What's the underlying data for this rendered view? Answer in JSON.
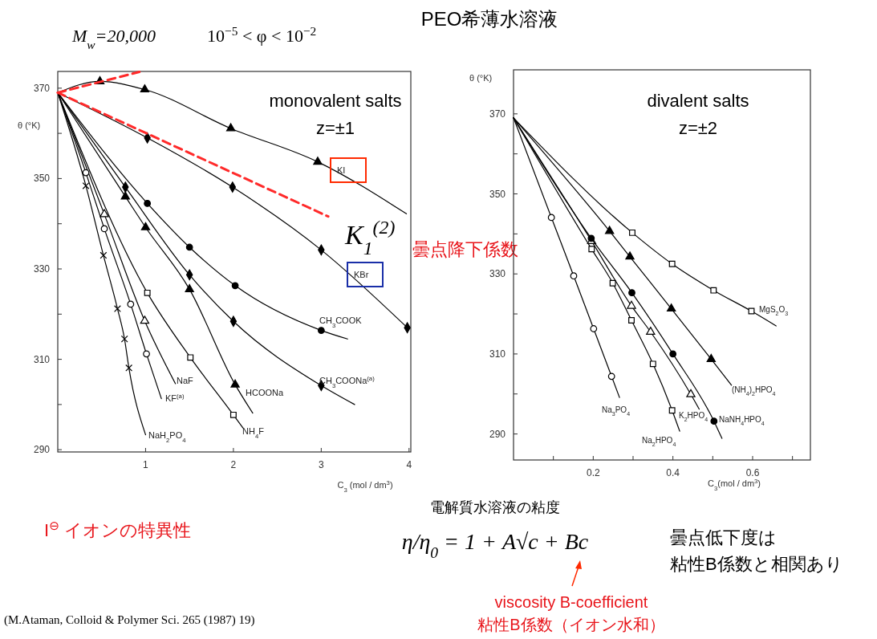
{
  "chart_data": [
    {
      "type": "line",
      "title": "PEO希薄水溶液",
      "xlabel": "C$_{3}$ (mol / dm$^{3}$)",
      "ylabel": "θ (°K)",
      "xlim": [
        0,
        4.02
      ],
      "ylim": [
        289.5,
        373.7
      ],
      "xticks": [
        1,
        2,
        3,
        4
      ],
      "yticks": [
        290,
        {
          "value": 300,
          "label": null
        },
        310,
        {
          "value": 320,
          "label": null
        },
        330,
        {
          "value": 340,
          "label": null
        },
        350,
        {
          "value": 360,
          "label": null
        },
        370
      ],
      "annotations": [
        "M$_{w}$=20,000",
        "10$^{−5}$ < φ < 10$^{−2}$",
        "monovalent salts",
        "z=±1",
        "K$_{1}$$^{(2)}$",
        "曇点降下係数",
        "I$^{⊖}$ イオンの特異性",
        "電解質水溶液の粘度",
        "η/η$_{0}$ = 1 + A√c + Bc",
        "曇点低下度は",
        "粘性B係数と相関あり",
        "viscosity B-coefficient",
        "粘性B係数（イオン水和）",
        "(M.Ataman, Colloid & Polymer Sci. 265 (1987) 19)"
      ],
      "series": [
        {
          "type": "line",
          "name": "KI",
          "color": "#000000",
          "marker": "none",
          "x": [
            0,
            0.48,
            0.99,
            1.97,
            2.96,
            3.97
          ],
          "values": [
            369,
            371.5,
            369.7,
            361.1,
            353.7,
            342.2
          ]
        },
        {
          "type": "scatter",
          "color": "#000000",
          "marker": "triangle",
          "x": [
            0.48,
            0.99,
            1.97,
            2.96
          ],
          "values": [
            371.5,
            369.7,
            361.1,
            353.7
          ]
        },
        {
          "type": "line",
          "name": "KBr",
          "color": "#000000",
          "marker": "none",
          "x": [
            0,
            1.02,
            1.99,
            3.0,
            3.98
          ],
          "values": [
            369,
            359.0,
            348.1,
            334.2,
            317.0
          ]
        },
        {
          "type": "scatter",
          "color": "#000000",
          "marker": "diamond",
          "x": [
            1.02,
            1.99,
            3.0,
            3.98
          ],
          "values": [
            359.0,
            348.1,
            334.2,
            317.0
          ]
        },
        {
          "type": "line",
          "name": "CH$_{3}$COOK",
          "color": "#000000",
          "marker": "none",
          "x": [
            0,
            1.02,
            1.5,
            2.02,
            3.0,
            3.3
          ],
          "values": [
            369,
            344.5,
            334.8,
            326.3,
            316.4,
            314.5
          ]
        },
        {
          "type": "scatter",
          "color": "#000000",
          "marker": "circle",
          "x": [
            1.02,
            1.5,
            2.02,
            3.0
          ],
          "values": [
            344.5,
            334.8,
            326.3,
            316.4
          ]
        },
        {
          "type": "line",
          "name": "CH$_{3}$COONa$^{(a)}$",
          "color": "#000000",
          "marker": "none",
          "x": [
            0,
            0.77,
            1.5,
            2.0,
            3.0,
            3.38
          ],
          "values": [
            369,
            348.1,
            328.7,
            318.4,
            304.2,
            300.0
          ]
        },
        {
          "type": "scatter",
          "color": "#000000",
          "marker": "diamond",
          "x": [
            0.77,
            1.5,
            2.0,
            3.0
          ],
          "values": [
            348.1,
            328.7,
            318.4,
            304.2
          ]
        },
        {
          "type": "line",
          "name": "HCOONa",
          "color": "#000000",
          "marker": "none",
          "x": [
            0,
            0.77,
            1.0,
            1.5,
            2.02,
            2.22
          ],
          "values": [
            369,
            346.0,
            339.2,
            325.5,
            304.4,
            298.1
          ]
        },
        {
          "type": "scatter",
          "color": "#000000",
          "marker": "triangle",
          "x": [
            0.77,
            1.0,
            1.5,
            2.02
          ],
          "values": [
            346.0,
            339.2,
            325.5,
            304.4
          ]
        },
        {
          "type": "line",
          "name": "NH$_{4}$F",
          "color": "#000000",
          "marker": "none",
          "x": [
            0,
            1.02,
            1.51,
            2.0,
            2.11
          ],
          "values": [
            369,
            324.7,
            310.4,
            297.7,
            294.8
          ]
        },
        {
          "type": "scatter",
          "color": "#ffffff",
          "marker": "square",
          "x": [
            1.02,
            1.51,
            2.0
          ],
          "values": [
            324.7,
            310.4,
            297.7
          ]
        },
        {
          "type": "line",
          "name": "NaF",
          "color": "#000000",
          "marker": "none",
          "x": [
            0,
            0.53,
            0.99,
            1.34
          ],
          "values": [
            369,
            342.1,
            318.5,
            304.6
          ]
        },
        {
          "type": "scatter",
          "color": "#ffffff",
          "marker": "triangle",
          "x": [
            0.53,
            0.99
          ],
          "values": [
            342.1,
            318.5
          ]
        },
        {
          "type": "line",
          "name": "KF$^{(a)}$",
          "color": "#000000",
          "marker": "none",
          "x": [
            0,
            0.32,
            0.53,
            0.83,
            1.01,
            1.18
          ],
          "values": [
            369,
            351.3,
            338.9,
            322.2,
            311.2,
            301.3
          ]
        },
        {
          "type": "scatter",
          "color": "#ffffff",
          "marker": "circle",
          "x": [
            0.32,
            0.53,
            0.83,
            1.01
          ],
          "values": [
            351.3,
            338.9,
            322.2,
            311.2
          ]
        },
        {
          "type": "line",
          "name": "NaH$_{2}$PO$_{4}$",
          "color": "#000000",
          "marker": "none",
          "x": [
            0,
            0.32,
            0.52,
            0.68,
            0.76,
            0.81,
            1.0
          ],
          "values": [
            369,
            348.4,
            333.0,
            321.2,
            314.5,
            308.1,
            293.3
          ]
        },
        {
          "type": "scatter",
          "color": "#000000",
          "marker": "cross",
          "x": [
            0.32,
            0.52,
            0.68,
            0.76,
            0.81
          ],
          "values": [
            348.4,
            333.0,
            321.2,
            314.5,
            308.1
          ]
        },
        {
          "type": "line",
          "color": "#ff2a2a",
          "marker": "none",
          "line_style": "dashed",
          "x": [
            0,
            0.93
          ],
          "values": [
            369,
            373.6
          ]
        },
        {
          "type": "line",
          "color": "#ff2a2a",
          "marker": "none",
          "line_style": "dashed",
          "x": [
            0,
            3.08
          ],
          "values": [
            369,
            341.6
          ]
        }
      ]
    },
    {
      "type": "line",
      "xlabel": "C$_{3}$(mol / dm$^{3}$)",
      "ylabel": "θ (°K)",
      "xlim": [
        0,
        0.745
      ],
      "ylim": [
        283.5,
        381
      ],
      "xticks": [
        {
          "value": 0.1,
          "label": null
        },
        0.2,
        {
          "value": 0.3,
          "label": null
        },
        0.4,
        {
          "value": 0.5,
          "label": null
        },
        0.6,
        {
          "value": 0.7,
          "label": null
        }
      ],
      "yticks": [
        290,
        {
          "value": 300,
          "label": null
        },
        310,
        {
          "value": 320,
          "label": null
        },
        330,
        {
          "value": 340,
          "label": null
        },
        350,
        {
          "value": 360,
          "label": null
        },
        370
      ],
      "annotations": [
        "divalent salts",
        "z=±2"
      ],
      "series": [
        {
          "type": "line",
          "name": "Na$_{3}$PO$_{4}$",
          "color": "#000000",
          "marker": "none",
          "x": [
            0,
            0.095,
            0.151,
            0.201,
            0.246,
            0.266
          ],
          "values": [
            369,
            344.1,
            329.5,
            316.3,
            304.4,
            299.1
          ]
        },
        {
          "type": "scatter",
          "color": "#ffffff",
          "marker": "circle",
          "x": [
            0.095,
            0.151,
            0.201,
            0.246
          ],
          "values": [
            344.1,
            329.5,
            316.3,
            304.4
          ]
        },
        {
          "type": "line",
          "name": "Na$_{2}$HPO$_{4}$",
          "color": "#000000",
          "marker": "none",
          "x": [
            0,
            0.196,
            0.249,
            0.296,
            0.35,
            0.398,
            0.417
          ],
          "values": [
            369,
            336.2,
            327.7,
            318.4,
            307.5,
            295.9,
            290.7
          ]
        },
        {
          "type": "scatter",
          "color": "#ffffff",
          "marker": "square",
          "x": [
            0.196,
            0.249,
            0.296,
            0.35,
            0.398
          ],
          "values": [
            336.2,
            327.7,
            318.4,
            307.5,
            295.9
          ]
        },
        {
          "type": "line",
          "name": "K$_{2}$HPO$_{4}$",
          "color": "#000000",
          "marker": "none",
          "x": [
            0,
            0.196,
            0.296,
            0.344,
            0.445,
            0.466
          ],
          "values": [
            369,
            338.2,
            322.0,
            315.5,
            299.9,
            296.2
          ]
        },
        {
          "type": "scatter",
          "color": "#ffffff",
          "marker": "triangle",
          "x": [
            0.196,
            0.296,
            0.344,
            0.445
          ],
          "values": [
            338.2,
            322.0,
            315.5,
            299.9
          ]
        },
        {
          "type": "line",
          "name": "NaNH$_{4}$HPO$_{4}$",
          "color": "#000000",
          "marker": "none",
          "x": [
            0,
            0.195,
            0.297,
            0.4,
            0.503,
            0.523
          ],
          "values": [
            369,
            338.9,
            325.3,
            310.0,
            293.2,
            288.9
          ]
        },
        {
          "type": "scatter",
          "color": "#000000",
          "marker": "circle",
          "x": [
            0.195,
            0.297,
            0.4,
            0.503
          ],
          "values": [
            338.9,
            325.3,
            310.0,
            293.2
          ]
        },
        {
          "type": "line",
          "name": "(NH$_{4}$)$_{2}$HPO$_{4}$",
          "color": "#000000",
          "marker": "none",
          "x": [
            0,
            0.241,
            0.292,
            0.396,
            0.496,
            0.547
          ],
          "values": [
            369,
            340.7,
            334.3,
            321.3,
            308.7,
            302.2
          ]
        },
        {
          "type": "scatter",
          "color": "#000000",
          "marker": "triangle",
          "x": [
            0.241,
            0.292,
            0.396,
            0.496
          ],
          "values": [
            340.7,
            334.3,
            321.3,
            308.7
          ]
        },
        {
          "type": "line",
          "name": "MgS$_{2}$O$_{3}$",
          "color": "#000000",
          "marker": "none",
          "x": [
            0,
            0.298,
            0.398,
            0.502,
            0.597,
            0.659
          ],
          "values": [
            369,
            340.3,
            332.5,
            325.9,
            320.7,
            317.0
          ]
        },
        {
          "type": "scatter",
          "color": "#ffffff",
          "marker": "square",
          "x": [
            0.298,
            0.398,
            0.502,
            0.597
          ],
          "values": [
            340.3,
            332.5,
            325.9,
            320.7
          ]
        }
      ]
    }
  ]
}
